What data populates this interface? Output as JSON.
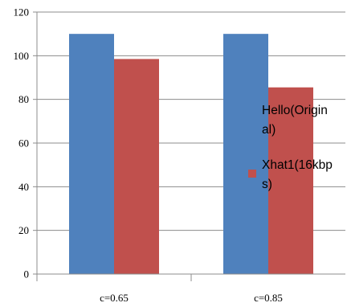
{
  "chart_data": {
    "type": "bar",
    "title": "",
    "xlabel": "",
    "ylabel": "",
    "categories": [
      "c=0.65",
      "c=0.85"
    ],
    "series": [
      {
        "name": "Hello(Original)",
        "legend_lines": [
          "Hello(Origin",
          "al)"
        ],
        "color": "#4f81bd",
        "values": [
          110,
          110
        ]
      },
      {
        "name": "Xhat1(16kbps)",
        "legend_lines": [
          "Xhat1(16kbp",
          "s)"
        ],
        "color": "#c0504d",
        "values": [
          98.5,
          85.5
        ]
      }
    ],
    "ylim": [
      0,
      120
    ],
    "yticks": [
      0,
      20,
      40,
      60,
      80,
      100,
      120
    ],
    "grid": true,
    "legend": "right"
  }
}
